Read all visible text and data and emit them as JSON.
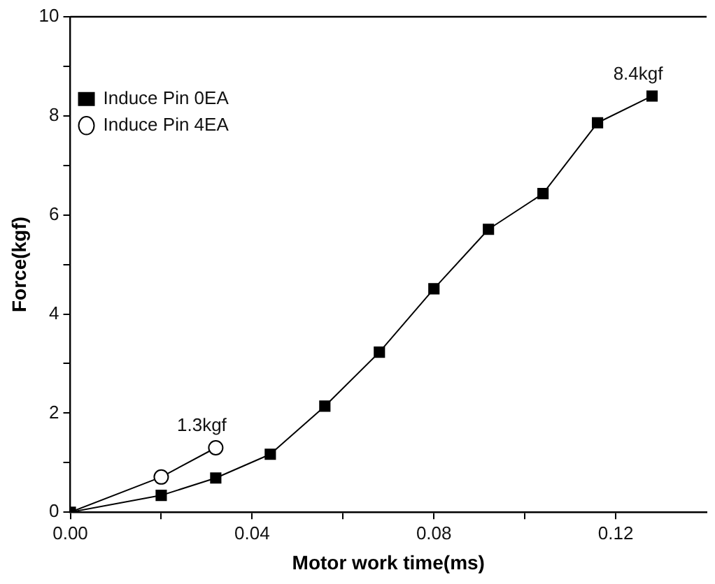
{
  "chart_data": {
    "type": "line",
    "xlabel": "Motor work time(ms)",
    "ylabel": "Force(kgf)",
    "xlim": [
      0,
      0.14
    ],
    "xticks": [
      {
        "value": 0,
        "label": "0.00"
      },
      {
        "value": 0.02,
        "label": null
      },
      {
        "value": 0.04,
        "label": "0.04"
      },
      {
        "value": 0.06,
        "label": null
      },
      {
        "value": 0.08,
        "label": "0.08"
      },
      {
        "value": 0.1,
        "label": null
      },
      {
        "value": 0.12,
        "label": "0.12"
      }
    ],
    "ylim": [
      0,
      10
    ],
    "yticks": [
      0,
      {
        "value": 1,
        "label": null
      },
      2,
      {
        "value": 3,
        "label": null
      },
      4,
      {
        "value": 5,
        "label": null
      },
      6,
      {
        "value": 7,
        "label": null
      },
      8,
      {
        "value": 9,
        "label": null
      },
      10
    ],
    "series": [
      {
        "name": "Induce Pin 0EA",
        "color": "#000000",
        "marker": "square",
        "x": [
          0,
          0.02,
          0.032,
          0.044,
          0.056,
          0.068,
          0.08,
          0.092,
          0.104,
          0.116,
          0.128
        ],
        "values": [
          0,
          0.34,
          0.69,
          1.17,
          2.14,
          3.23,
          4.51,
          5.71,
          6.43,
          7.86,
          8.4
        ]
      },
      {
        "name": "Induce Pin 4EA",
        "color": "#000000",
        "marker": "circle",
        "x": [
          0,
          0.02,
          0.032
        ],
        "values": [
          0,
          0.71,
          1.3
        ]
      }
    ],
    "annotations": [
      {
        "text": "1.3kgf",
        "x": 0.032,
        "y": 1.3
      },
      {
        "text": "8.4kgf",
        "x": 0.128,
        "y": 8.4
      }
    ],
    "legend": "top left",
    "grid": false,
    "line_style": "solid"
  }
}
